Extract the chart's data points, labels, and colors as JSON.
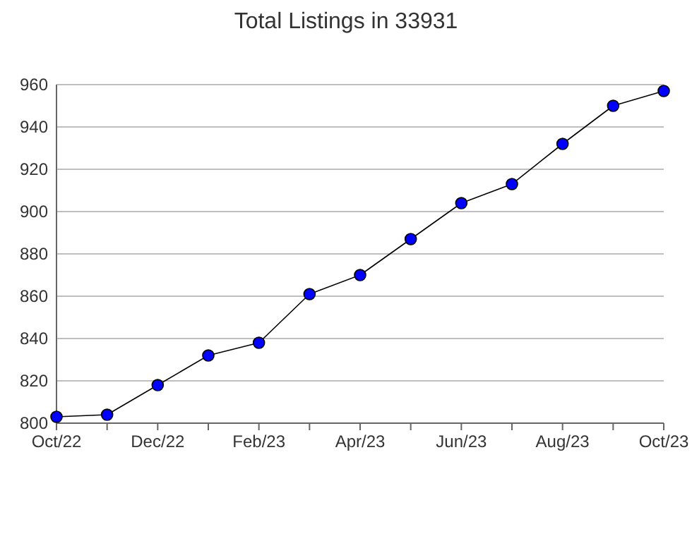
{
  "chart_data": {
    "type": "line",
    "title": "Total Listings in 33931",
    "categories": [
      "Oct/22",
      null,
      "Dec/22",
      null,
      "Feb/23",
      null,
      "Apr/23",
      null,
      "Jun/23",
      null,
      "Aug/23",
      null,
      "Oct/23"
    ],
    "series": [
      {
        "color": "#0000ff",
        "values": [
          803,
          804,
          818,
          832,
          838,
          861,
          870,
          887,
          904,
          913,
          932,
          950,
          957
        ]
      }
    ],
    "ylim": [
      800,
      960
    ],
    "yticks": [
      800,
      820,
      840,
      860,
      880,
      900,
      920,
      940,
      960
    ],
    "grid": "y",
    "marker": "circle",
    "line_style": "solid"
  }
}
